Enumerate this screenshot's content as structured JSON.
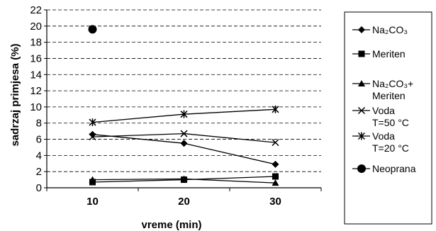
{
  "chart_data": {
    "type": "line",
    "title": "",
    "xlabel": "vreme (min)",
    "ylabel": "sadrzaj primjesa (%)",
    "categories": [
      "10",
      "20",
      "30"
    ],
    "ylim": [
      0,
      22
    ],
    "yticks": [
      "0",
      "2",
      "4",
      "6",
      "8",
      "10",
      "12",
      "14",
      "16",
      "18",
      "20",
      "22"
    ],
    "grid": true,
    "legend_position": "right",
    "series": [
      {
        "name": "Na2CO3",
        "legend_lines": [
          "Na₂CO₃"
        ],
        "marker": "diamond",
        "values": [
          6.6,
          5.5,
          2.9
        ]
      },
      {
        "name": "Meriten",
        "legend_lines": [
          "Meriten"
        ],
        "marker": "square",
        "values": [
          0.7,
          1.0,
          1.4
        ]
      },
      {
        "name": "Na2CO3+ Meriten",
        "legend_lines": [
          "Na₂CO₃+",
          "Meriten"
        ],
        "marker": "triangle",
        "values": [
          1.0,
          1.1,
          0.6
        ]
      },
      {
        "name": "Voda T=50 °C",
        "legend_lines": [
          "Voda",
          "T=50 °C"
        ],
        "marker": "x",
        "values": [
          6.3,
          6.7,
          5.6
        ]
      },
      {
        "name": "Voda T=20 °C",
        "legend_lines": [
          "Voda",
          "T=20 °C"
        ],
        "marker": "star",
        "values": [
          8.1,
          9.1,
          9.7
        ]
      },
      {
        "name": "Neoprana",
        "legend_lines": [
          "Neoprana"
        ],
        "marker": "circle",
        "values": [
          19.6,
          null,
          null
        ]
      }
    ]
  }
}
